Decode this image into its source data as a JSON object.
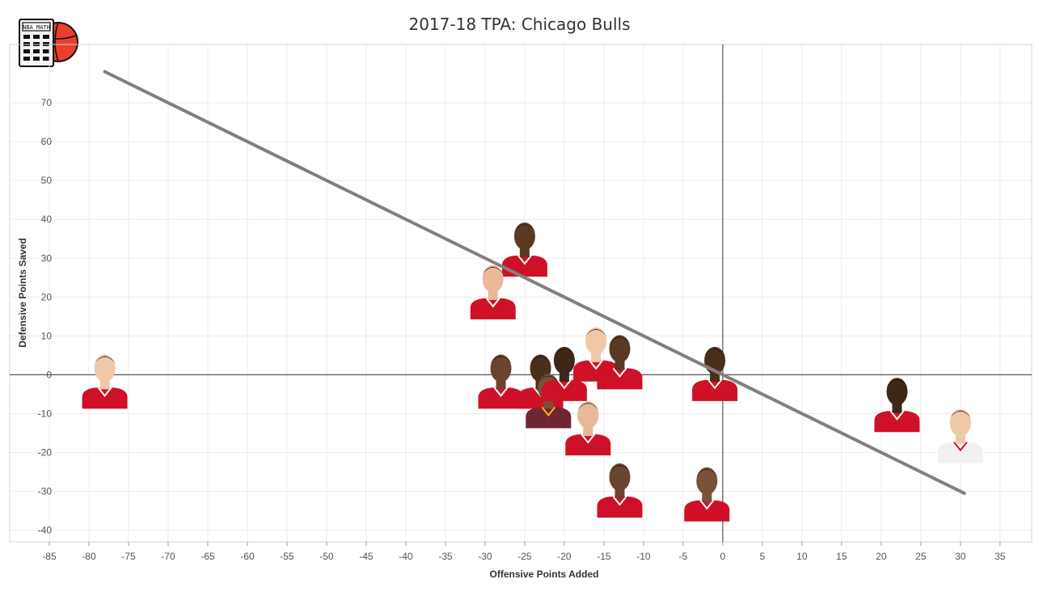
{
  "chart_data": {
    "type": "scatter",
    "title": "2017-18 TPA: Chicago Bulls",
    "xlabel": "Offensive Points Added",
    "ylabel": "Defensive Points Saved",
    "xlim": [
      -90,
      39
    ],
    "ylim": [
      -43,
      85
    ],
    "xticks": [
      -85,
      -80,
      -75,
      -70,
      -65,
      -60,
      -55,
      -50,
      -45,
      -40,
      -35,
      -30,
      -25,
      -20,
      -15,
      -10,
      -5,
      0,
      5,
      10,
      15,
      20,
      25,
      30,
      35
    ],
    "yticks": [
      -40,
      -30,
      -20,
      -10,
      0,
      10,
      20,
      30,
      40,
      50,
      60,
      70
    ],
    "grid": true,
    "reference_lines": {
      "x": 0,
      "y": 0
    },
    "trend_line": {
      "x": [
        -78,
        30.5
      ],
      "y": [
        78,
        -30.5
      ],
      "color": "#808080"
    },
    "points": [
      {
        "x": -78,
        "y": -5,
        "jersey": "red"
      },
      {
        "x": -25,
        "y": 29,
        "jersey": "red"
      },
      {
        "x": -29,
        "y": 18,
        "jersey": "red"
      },
      {
        "x": -28,
        "y": -5,
        "jersey": "red"
      },
      {
        "x": -23,
        "y": -5,
        "jersey": "red"
      },
      {
        "x": -22,
        "y": -10,
        "jersey": "wine-gold"
      },
      {
        "x": -20,
        "y": -3,
        "jersey": "red"
      },
      {
        "x": -16,
        "y": 2,
        "jersey": "red"
      },
      {
        "x": -13,
        "y": 0,
        "jersey": "red"
      },
      {
        "x": -17,
        "y": -17,
        "jersey": "red"
      },
      {
        "x": -13,
        "y": -33,
        "jersey": "red"
      },
      {
        "x": -1,
        "y": -3,
        "jersey": "red"
      },
      {
        "x": -2,
        "y": -34,
        "jersey": "red"
      },
      {
        "x": 22,
        "y": -11,
        "jersey": "red"
      },
      {
        "x": 30,
        "y": -19,
        "jersey": "white"
      }
    ]
  },
  "colors": {
    "grid": "#ececec",
    "axis_line": "#555555",
    "trend": "#808080",
    "bulls_red": "#ce1126",
    "skin_tones": [
      "#f0c8a8",
      "#5a3a24",
      "#e8b898",
      "#6b4430",
      "#4a2e1c",
      "#7a5038",
      "#3e2716"
    ]
  },
  "logo": {
    "label": "NBA MATH",
    "icon": "calculator-basketball-icon"
  }
}
